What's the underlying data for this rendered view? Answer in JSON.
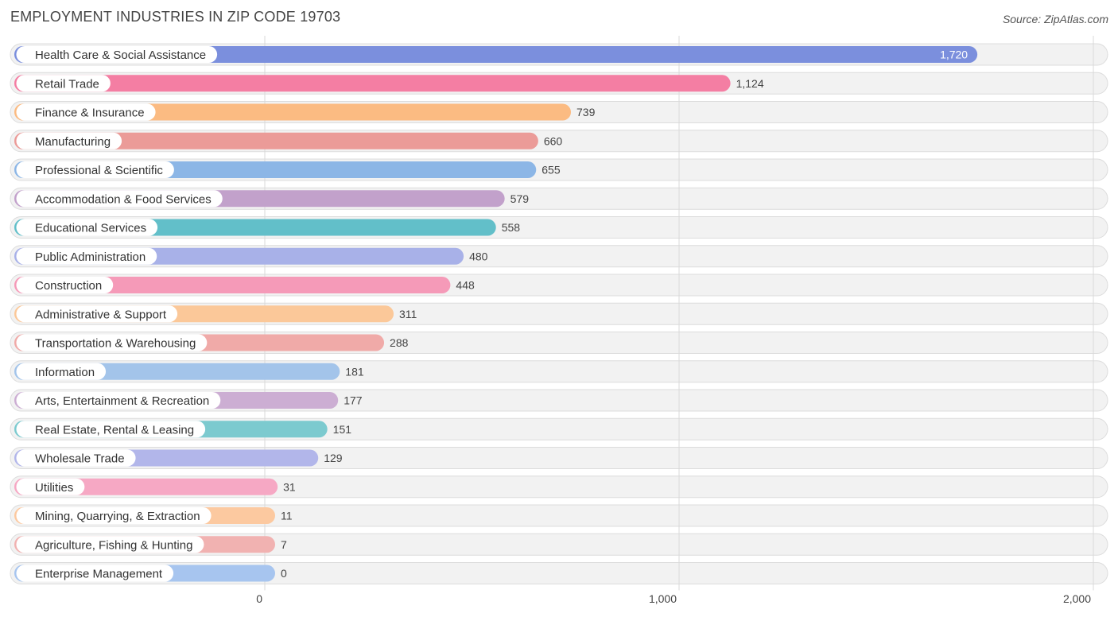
{
  "chart_data": {
    "type": "bar",
    "orientation": "horizontal",
    "title": "EMPLOYMENT INDUSTRIES IN ZIP CODE 19703",
    "source": "Source: ZipAtlas.com",
    "categories": [
      "Health Care & Social Assistance",
      "Retail Trade",
      "Finance & Insurance",
      "Manufacturing",
      "Professional & Scientific",
      "Accommodation & Food Services",
      "Educational Services",
      "Public Administration",
      "Construction",
      "Administrative & Support",
      "Transportation & Warehousing",
      "Information",
      "Arts, Entertainment & Recreation",
      "Real Estate, Rental & Leasing",
      "Wholesale Trade",
      "Utilities",
      "Mining, Quarrying, & Extraction",
      "Agriculture, Fishing & Hunting",
      "Enterprise Management"
    ],
    "values": [
      1720,
      1124,
      739,
      660,
      655,
      579,
      558,
      480,
      448,
      311,
      288,
      181,
      177,
      151,
      129,
      31,
      11,
      7,
      0
    ],
    "value_labels": [
      "1,720",
      "1,124",
      "739",
      "660",
      "655",
      "579",
      "558",
      "480",
      "448",
      "311",
      "288",
      "181",
      "177",
      "151",
      "129",
      "31",
      "11",
      "7",
      "0"
    ],
    "colors": [
      "#7b8fdd",
      "#f47ea3",
      "#fbbb82",
      "#eb9b98",
      "#8cb6e6",
      "#c2a1cb",
      "#62bfc9",
      "#a8b1e8",
      "#f59ab8",
      "#fbc899",
      "#f0aaa8",
      "#a3c4ea",
      "#ccaed3",
      "#7ccacf",
      "#b2b6ea",
      "#f6a8c4",
      "#fcc9a0",
      "#f1b2b1",
      "#a7c5ef"
    ],
    "x_ticks": [
      0,
      1000,
      2000
    ],
    "x_tick_labels": [
      "0",
      "1,000",
      "2,000"
    ],
    "xlim": [
      0,
      2000
    ],
    "xlabel": "",
    "ylabel": "",
    "grid": true
  }
}
